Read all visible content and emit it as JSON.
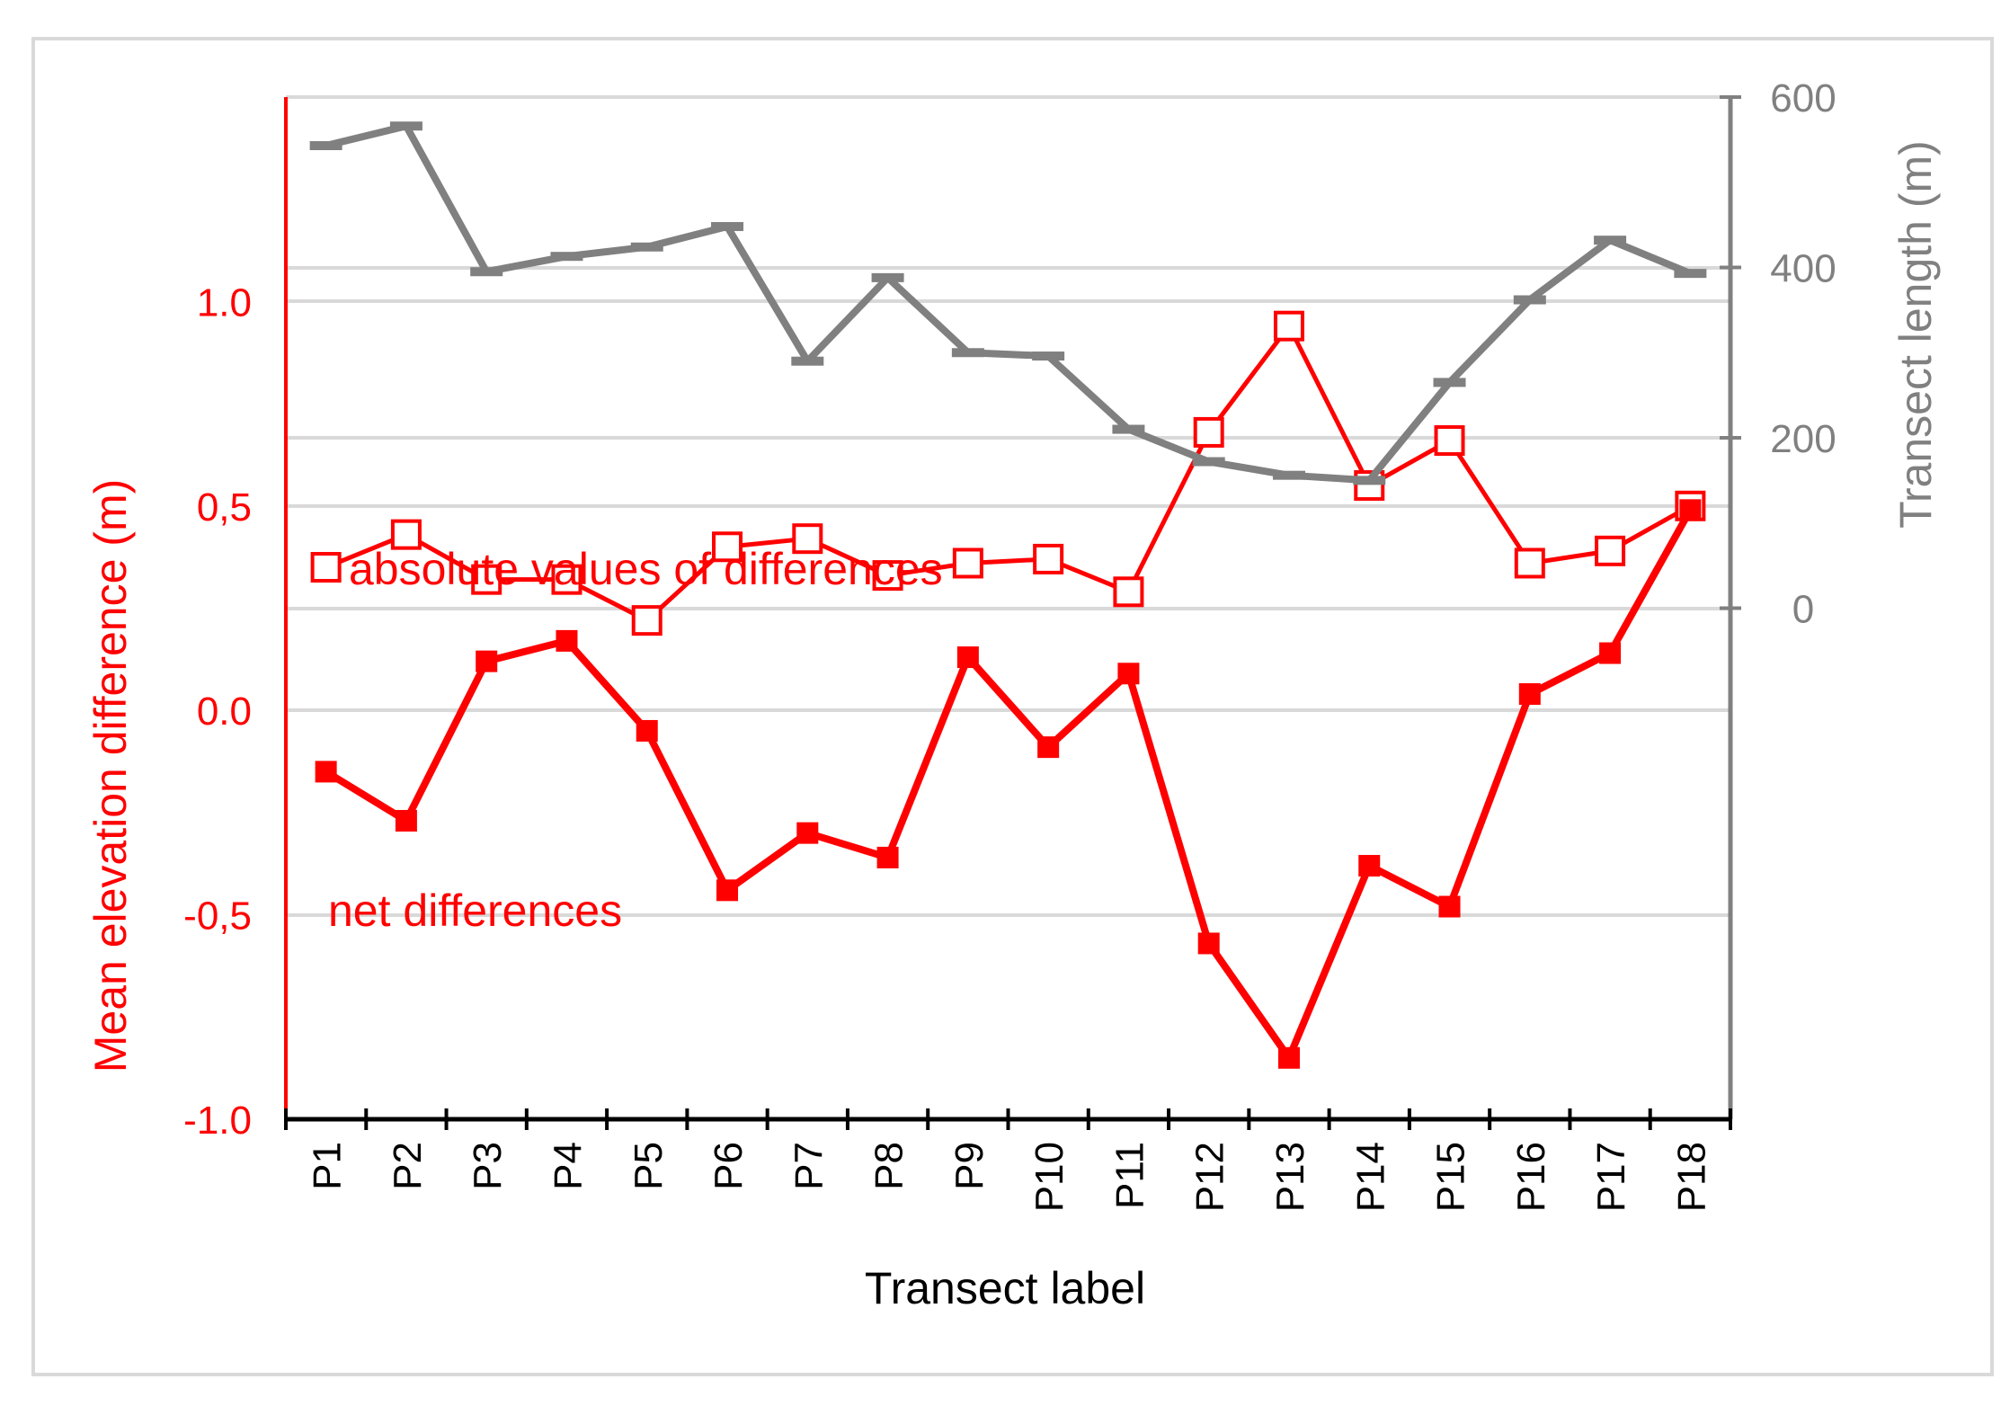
{
  "chart_data": {
    "type": "line",
    "categories": [
      "P1",
      "P2",
      "P3",
      "P4",
      "P5",
      "P6",
      "P7",
      "P8",
      "P9",
      "P10",
      "P11",
      "P12",
      "P13",
      "P14",
      "P15",
      "P16",
      "P17",
      "P18"
    ],
    "xlabel": "Transect label",
    "ylabel_left": "Mean elevation difference (m)",
    "ylabel_right": "Transect length (m)",
    "left_axis": {
      "ylim": [
        -1.0,
        1.5
      ],
      "ticks": [
        -1.0,
        -0.5,
        0.0,
        0.5,
        1.0
      ],
      "tick_labels": [
        "-1.0",
        "-0,5",
        "0.0",
        "0,5",
        "1.0"
      ]
    },
    "right_axis": {
      "ylim": [
        -600,
        600
      ],
      "ticks": [
        0,
        200,
        400,
        600
      ],
      "tick_labels": [
        "0",
        "200",
        "400",
        "600"
      ]
    },
    "grid": true,
    "series": [
      {
        "name": "absolute values of differences",
        "axis": "left",
        "marker": "hollow-square",
        "color": "#ff0000",
        "values": [
          0.35,
          0.43,
          0.32,
          0.32,
          0.22,
          0.4,
          0.42,
          0.33,
          0.36,
          0.37,
          0.29,
          0.68,
          0.94,
          0.55,
          0.66,
          0.36,
          0.39,
          0.5
        ]
      },
      {
        "name": "net differences",
        "axis": "left",
        "marker": "filled-square",
        "color": "#ff0000",
        "values": [
          -0.15,
          -0.27,
          0.12,
          0.17,
          -0.05,
          -0.44,
          -0.3,
          -0.36,
          0.13,
          -0.09,
          0.09,
          -0.57,
          -0.85,
          -0.38,
          -0.48,
          0.04,
          0.14,
          0.49
        ]
      },
      {
        "name": "",
        "axis": "right",
        "marker": "dash",
        "color": "#808080",
        "values": [
          543,
          566,
          395,
          413,
          424,
          448,
          290,
          388,
          300,
          296,
          210,
          172,
          156,
          150,
          265,
          362,
          432,
          393
        ]
      }
    ],
    "annotations": [
      "absolute values of differences",
      "net differences"
    ]
  },
  "colors": {
    "primary": "#ff0000",
    "secondary": "#808080",
    "grid": "#d9d9d9",
    "border": "#d9d9d9"
  }
}
